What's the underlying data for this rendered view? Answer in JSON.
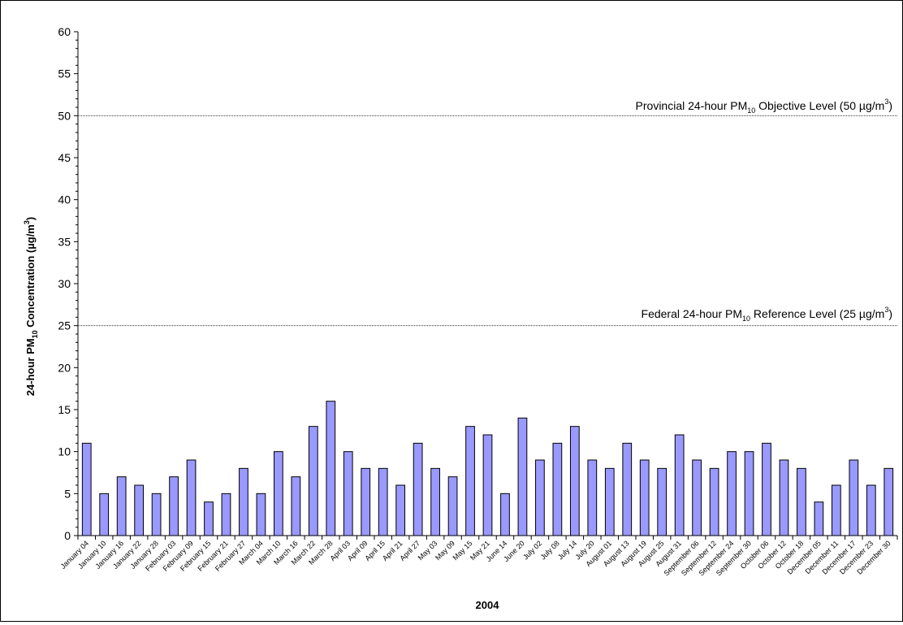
{
  "chart_data": {
    "type": "bar",
    "xlabel": "2004",
    "ylabel": {
      "prefix": "24-hour PM",
      "sub": "10",
      "suffix": " Concentration (µg/m",
      "sup": "3",
      "end": ")"
    },
    "ylim": [
      0,
      60
    ],
    "yticks": [
      0,
      5,
      10,
      15,
      20,
      25,
      30,
      35,
      40,
      45,
      50,
      55,
      60
    ],
    "grid": false,
    "bar_color": "#9999ff",
    "bar_edge_color": "#000000",
    "categories": [
      "January 04",
      "January 10",
      "January 16",
      "January 22",
      "January 28",
      "February 03",
      "February 09",
      "February 15",
      "February 21",
      "February 27",
      "March 04",
      "March 10",
      "March 16",
      "March 22",
      "March 28",
      "April 03",
      "April 09",
      "April 15",
      "April 21",
      "April 27",
      "May 03",
      "May 09",
      "May 15",
      "May 21",
      "June 14",
      "June 20",
      "July 02",
      "July 08",
      "July 14",
      "July 20",
      "August 01",
      "August 13",
      "August 19",
      "August 25",
      "August 31",
      "September 06",
      "September 12",
      "September 24",
      "September 30",
      "October 06",
      "October 12",
      "October 18",
      "December 05",
      "December 11",
      "December 17",
      "December 23",
      "December 30"
    ],
    "values": [
      11,
      5,
      7,
      6,
      5,
      7,
      9,
      4,
      5,
      8,
      5,
      10,
      7,
      13,
      16,
      10,
      8,
      8,
      6,
      11,
      8,
      7,
      13,
      12,
      5,
      14,
      9,
      11,
      13,
      9,
      8,
      11,
      9,
      8,
      12,
      9,
      8,
      10,
      10,
      11,
      9,
      8,
      4,
      6,
      9,
      6,
      8
    ],
    "reference_lines": [
      {
        "value": 50,
        "label": {
          "prefix": "Provincial 24-hour PM",
          "sub": "10",
          "middle": " Objective Level (50 µg/m",
          "sup": "3",
          "end": ")"
        }
      },
      {
        "value": 25,
        "label": {
          "prefix": "Federal 24-hour PM",
          "sub": "10",
          "middle": " Reference Level (25 µg/m",
          "sup": "3",
          "end": ")"
        }
      }
    ]
  }
}
